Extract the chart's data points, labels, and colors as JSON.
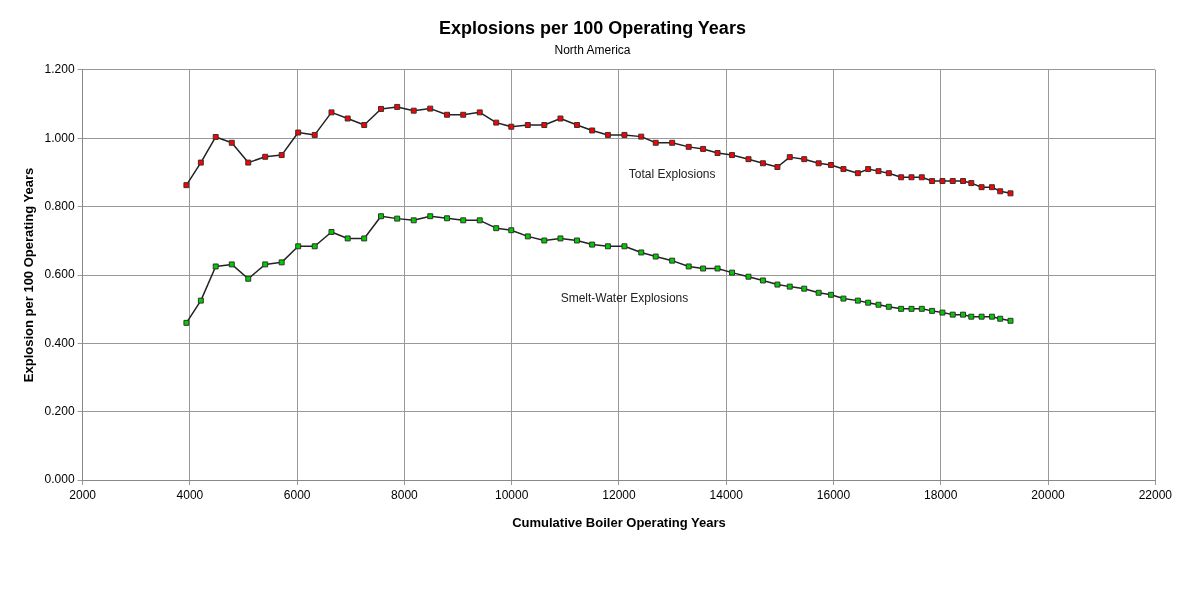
{
  "chart_data": {
    "type": "line",
    "title": "Explosions per 100 Operating Years",
    "subtitle": "North America",
    "xlabel": "Cumulative Boiler Operating Years",
    "ylabel": "Explosion per 100 Operating Years",
    "x": [
      3935,
      4204,
      4481,
      4781,
      5088,
      5404,
      5711,
      6019,
      6327,
      6640,
      6942,
      7250,
      7563,
      7865,
      8173,
      8481,
      8794,
      9096,
      9404,
      9711,
      9992,
      10300,
      10608,
      10909,
      11217,
      11500,
      11794,
      12102,
      12415,
      12685,
      12992,
      13300,
      13569,
      13838,
      14108,
      14415,
      14684,
      14954,
      15184,
      15454,
      15723,
      15954,
      16185,
      16454,
      16646,
      16839,
      17031,
      17261,
      17454,
      17646,
      17838,
      18031,
      18223,
      18415,
      18569,
      18761,
      18954,
      19108,
      19300
    ],
    "series": [
      {
        "name": "Total Explosions",
        "color": "#ff0000",
        "values": [
          0.863,
          0.929,
          1.004,
          0.987,
          0.929,
          0.946,
          0.951,
          1.017,
          1.01,
          1.076,
          1.058,
          1.039,
          1.086,
          1.092,
          1.081,
          1.087,
          1.069,
          1.069,
          1.076,
          1.046,
          1.034,
          1.039,
          1.039,
          1.058,
          1.039,
          1.023,
          1.01,
          1.01,
          1.005,
          0.987,
          0.987,
          0.975,
          0.969,
          0.957,
          0.951,
          0.939,
          0.927,
          0.916,
          0.945,
          0.939,
          0.927,
          0.922,
          0.91,
          0.898,
          0.91,
          0.904,
          0.898,
          0.886,
          0.886,
          0.886,
          0.875,
          0.875,
          0.875,
          0.875,
          0.869,
          0.857,
          0.857,
          0.845,
          0.839
        ]
      },
      {
        "name": "Smelt-Water Explosions",
        "color": "#00cc00",
        "values": [
          0.46,
          0.525,
          0.625,
          0.631,
          0.589,
          0.631,
          0.637,
          0.684,
          0.684,
          0.726,
          0.707,
          0.707,
          0.772,
          0.765,
          0.76,
          0.772,
          0.766,
          0.76,
          0.76,
          0.737,
          0.731,
          0.713,
          0.701,
          0.707,
          0.701,
          0.689,
          0.684,
          0.684,
          0.666,
          0.654,
          0.642,
          0.625,
          0.619,
          0.619,
          0.607,
          0.595,
          0.584,
          0.572,
          0.566,
          0.56,
          0.548,
          0.542,
          0.531,
          0.525,
          0.519,
          0.513,
          0.507,
          0.501,
          0.501,
          0.501,
          0.495,
          0.49,
          0.484,
          0.484,
          0.478,
          0.478,
          0.478,
          0.472,
          0.466
        ]
      }
    ],
    "xlim": [
      2000,
      22000
    ],
    "xticks": [
      2000,
      4000,
      6000,
      8000,
      10000,
      12000,
      14000,
      16000,
      18000,
      20000,
      22000
    ],
    "ylim": [
      0,
      1.2
    ],
    "yticks": [
      {
        "value": 0,
        "label": "0.000"
      },
      {
        "value": 0.2,
        "label": "0.200"
      },
      {
        "value": 0.4,
        "label": "0.400"
      },
      {
        "value": 0.6,
        "label": "0.600"
      },
      {
        "value": 0.8,
        "label": "0.800"
      },
      {
        "value": 1,
        "label": "1.000"
      },
      {
        "value": 1.2,
        "label": "1.200"
      }
    ],
    "grid": true,
    "legend": false,
    "marker": "square",
    "line_style": "solid"
  }
}
